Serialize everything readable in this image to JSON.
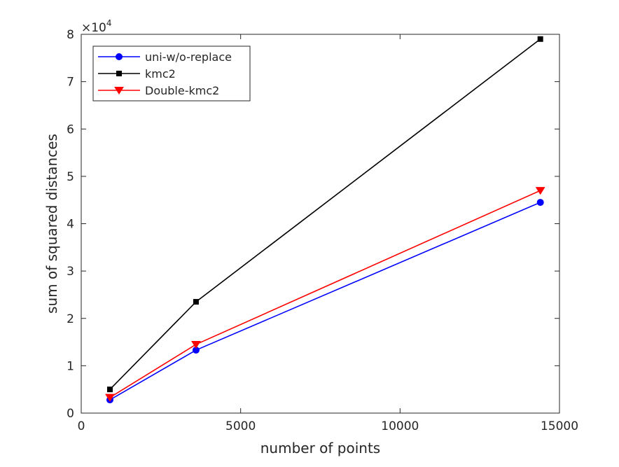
{
  "chart_data": {
    "type": "line",
    "xlabel": "number of points",
    "ylabel": "sum of squared distances",
    "y_multiplier_label": "×10",
    "y_multiplier_exponent": "4",
    "xlim": [
      0,
      15000
    ],
    "ylim": [
      0,
      80000
    ],
    "x_ticks": [
      0,
      5000,
      10000,
      15000
    ],
    "x_tick_labels": [
      "0",
      "5000",
      "10000",
      "15000"
    ],
    "y_ticks": [
      0,
      10000,
      20000,
      30000,
      40000,
      50000,
      60000,
      70000,
      80000
    ],
    "y_tick_labels": [
      "0",
      "1",
      "2",
      "3",
      "4",
      "5",
      "6",
      "7",
      "8"
    ],
    "grid": false,
    "legend_position": "top-left",
    "x": [
      900,
      3600,
      14400
    ],
    "series": [
      {
        "name": "uni-w/o-replace",
        "color": "#0000ff",
        "marker": "circle",
        "values": [
          2800,
          13300,
          44500
        ]
      },
      {
        "name": "kmc2",
        "color": "#000000",
        "marker": "square",
        "values": [
          5000,
          23500,
          79000
        ]
      },
      {
        "name": "Double-kmc2",
        "color": "#ff0000",
        "marker": "triangle-down",
        "values": [
          3300,
          14500,
          47000
        ]
      }
    ]
  }
}
